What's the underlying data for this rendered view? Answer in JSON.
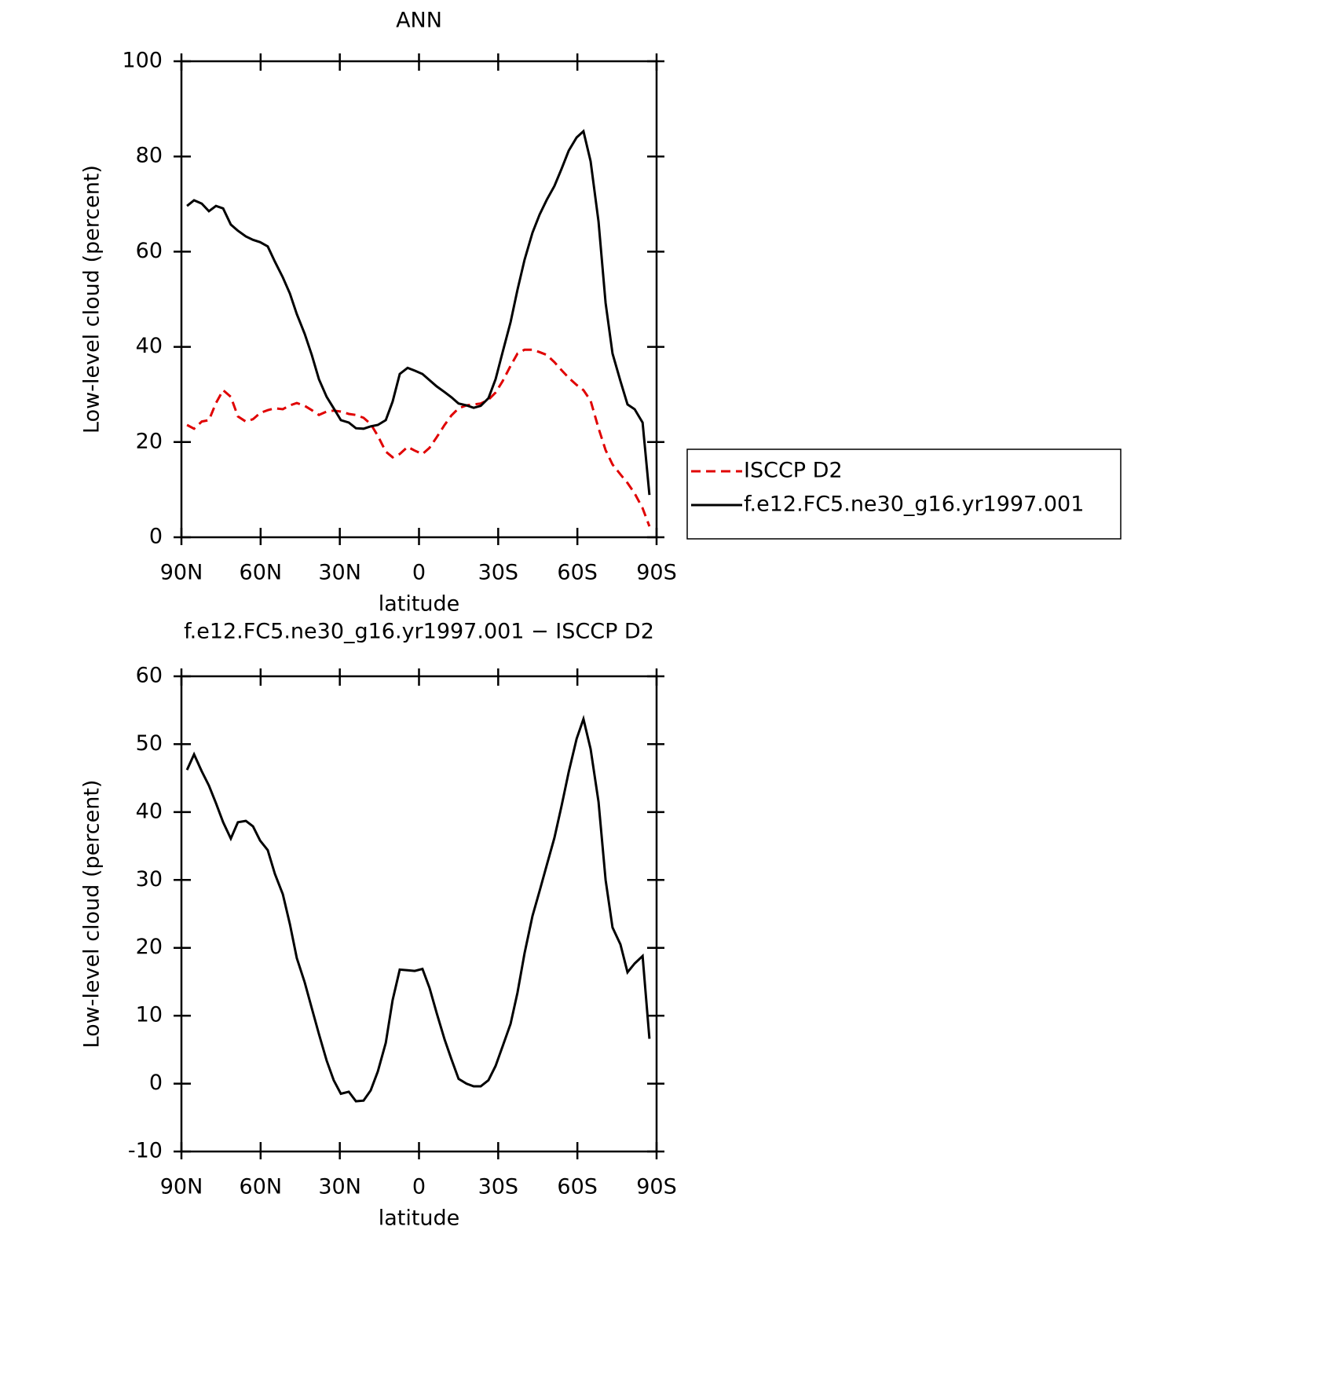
{
  "chart_data": [
    {
      "type": "line",
      "title": "ANN",
      "xlabel": "latitude",
      "ylabel": "Low-level cloud (percent)",
      "xlim": [
        90,
        -90
      ],
      "ylim": [
        0,
        100
      ],
      "xticks": [
        {
          "value": 90,
          "label": "90N"
        },
        {
          "value": 60,
          "label": "60N"
        },
        {
          "value": 30,
          "label": "30N"
        },
        0,
        {
          "value": -30,
          "label": "30S"
        },
        {
          "value": -60,
          "label": "60S"
        },
        {
          "value": -90,
          "label": "90S"
        }
      ],
      "yticks": [
        0,
        20,
        40,
        60,
        80,
        100
      ],
      "legend": "outside right",
      "x": [
        87.9,
        85.2,
        82.3,
        79.6,
        76.9,
        74.2,
        71.3,
        68.6,
        65.6,
        62.9,
        60.2,
        57.3,
        54.6,
        51.6,
        48.9,
        46.3,
        43.3,
        40.6,
        37.9,
        35.0,
        32.3,
        29.6,
        26.6,
        23.9,
        21.0,
        18.3,
        15.6,
        12.6,
        10.0,
        7.3,
        4.3,
        1.6,
        -1.3,
        -4.0,
        -6.7,
        -9.7,
        -12.3,
        -15.0,
        -18.0,
        -20.7,
        -23.4,
        -26.3,
        -29.0,
        -31.7,
        -34.7,
        -37.3,
        -40.0,
        -43.0,
        -45.7,
        -48.4,
        -51.3,
        -54.0,
        -56.7,
        -59.7,
        -62.3,
        -65.0,
        -68.0,
        -70.7,
        -73.3,
        -76.3,
        -79.0,
        -81.7,
        -84.7,
        -87.3
      ],
      "series": [
        {
          "name": "ISCCP D2",
          "color": "#e00000",
          "linestyle": "dashed",
          "values": [
            23.6,
            22.8,
            24.3,
            24.6,
            28.2,
            30.9,
            29.5,
            25.4,
            24.3,
            24.8,
            26.1,
            26.7,
            27.1,
            26.9,
            27.7,
            28.2,
            27.6,
            26.7,
            25.7,
            26.4,
            26.6,
            26.4,
            25.9,
            25.7,
            25.1,
            23.8,
            21.3,
            18.0,
            16.8,
            17.5,
            19.0,
            18.2,
            17.5,
            18.8,
            21.0,
            23.6,
            25.6,
            27.1,
            27.7,
            27.9,
            28.1,
            28.9,
            30.4,
            32.8,
            36.0,
            38.6,
            39.4,
            39.4,
            38.9,
            38.3,
            36.8,
            35.1,
            33.5,
            32.0,
            30.9,
            28.7,
            22.9,
            18.3,
            15.3,
            13.2,
            11.4,
            9.2,
            6.1,
            2.3
          ]
        },
        {
          "name": "f.e12.FC5.ne30_g16.yr1997.001",
          "color": "#000000",
          "linestyle": "solid",
          "values": [
            69.6,
            70.8,
            70.1,
            68.5,
            69.6,
            69.1,
            65.7,
            64.4,
            63.2,
            62.5,
            62.0,
            61.1,
            57.9,
            54.6,
            51.2,
            46.9,
            42.7,
            38.3,
            33.2,
            29.5,
            27.1,
            24.6,
            24.1,
            22.9,
            22.8,
            23.3,
            23.6,
            24.6,
            28.5,
            34.3,
            35.6,
            35.0,
            34.3,
            33.0,
            31.7,
            30.5,
            29.4,
            28.1,
            27.7,
            27.2,
            27.6,
            29.2,
            33.2,
            38.9,
            45.2,
            52.0,
            58.3,
            64.0,
            67.8,
            70.9,
            73.8,
            77.4,
            81.2,
            84.0,
            85.3,
            79.0,
            66.3,
            49.2,
            38.6,
            32.8,
            27.9,
            26.9,
            24.1,
            8.9
          ]
        }
      ]
    },
    {
      "type": "line",
      "title": "f.e12.FC5.ne30_g16.yr1997.001 − ISCCP D2",
      "xlabel": "latitude",
      "ylabel": "Low-level cloud (percent)",
      "xlim": [
        90,
        -90
      ],
      "ylim": [
        -10,
        60
      ],
      "xticks": [
        {
          "value": 90,
          "label": "90N"
        },
        {
          "value": 60,
          "label": "60N"
        },
        {
          "value": 30,
          "label": "30N"
        },
        0,
        {
          "value": -30,
          "label": "30S"
        },
        {
          "value": -60,
          "label": "60S"
        },
        {
          "value": -90,
          "label": "90S"
        }
      ],
      "yticks": [
        -10,
        0,
        10,
        20,
        30,
        40,
        50,
        60
      ],
      "x": [
        87.9,
        85.2,
        82.3,
        79.6,
        76.9,
        74.2,
        71.3,
        68.6,
        65.6,
        62.9,
        60.2,
        57.3,
        54.6,
        51.6,
        48.9,
        46.3,
        43.3,
        40.6,
        37.9,
        35.0,
        32.3,
        29.6,
        26.6,
        23.9,
        21.0,
        18.3,
        15.6,
        12.6,
        10.0,
        7.3,
        4.3,
        1.6,
        -1.3,
        -4.0,
        -6.7,
        -9.7,
        -12.3,
        -15.0,
        -18.0,
        -20.7,
        -23.4,
        -26.3,
        -29.0,
        -31.7,
        -34.7,
        -37.3,
        -40.0,
        -43.0,
        -45.7,
        -48.4,
        -51.3,
        -54.0,
        -56.7,
        -59.7,
        -62.3,
        -65.0,
        -68.0,
        -70.7,
        -73.3,
        -76.3,
        -79.0,
        -81.7,
        -84.7,
        -87.3
      ],
      "series": [
        {
          "color": "#000000",
          "linestyle": "solid",
          "values": [
            46.2,
            48.5,
            46.0,
            43.9,
            41.3,
            38.5,
            36.1,
            38.5,
            38.7,
            37.9,
            35.8,
            34.4,
            30.9,
            27.9,
            23.5,
            18.5,
            14.9,
            11.1,
            7.3,
            3.4,
            0.5,
            -1.5,
            -1.2,
            -2.6,
            -2.5,
            -1.0,
            1.8,
            6.0,
            12.3,
            16.8,
            16.7,
            16.6,
            16.9,
            14.1,
            10.4,
            6.5,
            3.6,
            0.7,
            0,
            -0.4,
            -0.4,
            0.5,
            2.6,
            5.5,
            8.8,
            13.4,
            19.2,
            24.7,
            28.4,
            32.2,
            36.2,
            40.9,
            45.9,
            50.8,
            53.7,
            49.3,
            41.5,
            30.0,
            23.0,
            20.5,
            16.4,
            17.7,
            18.8,
            6.6
          ]
        }
      ]
    }
  ]
}
